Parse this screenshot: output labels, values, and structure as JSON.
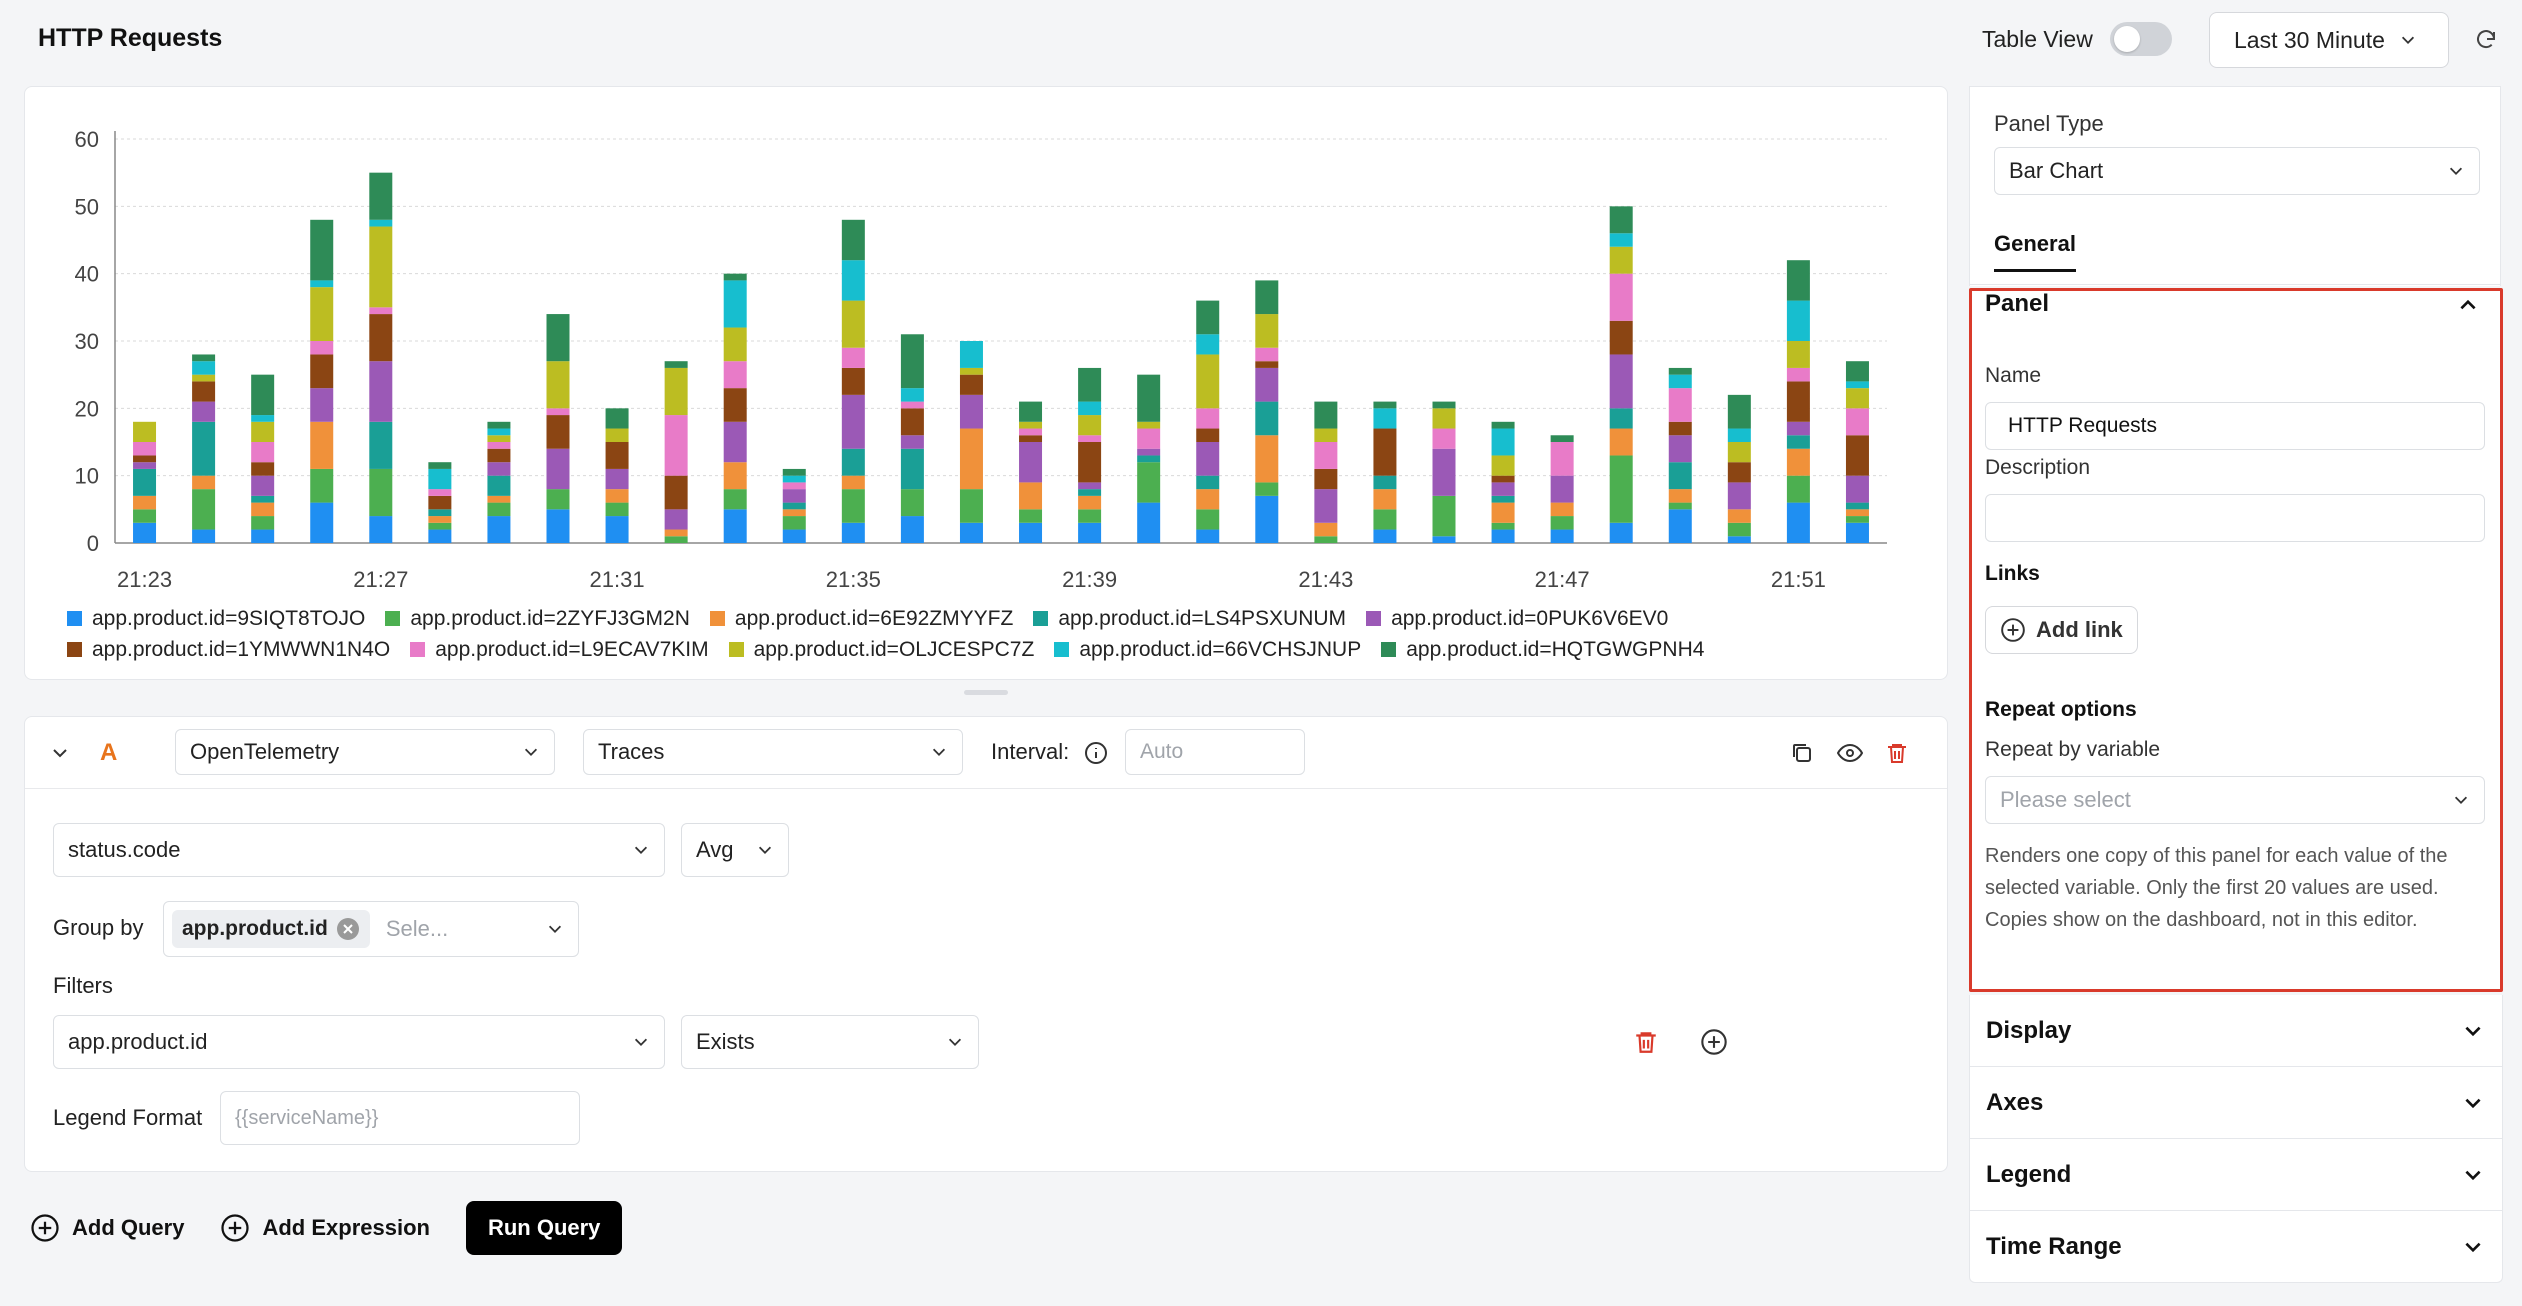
{
  "header": {
    "title": "HTTP Requests",
    "table_view_label": "Table View",
    "table_view_on": false,
    "time_range": "Last 30 Minute"
  },
  "chart_data": {
    "type": "bar",
    "stacked": true,
    "ylim": [
      0,
      60
    ],
    "yticks": [
      0,
      10,
      20,
      30,
      40,
      50,
      60
    ],
    "xtick_labels": [
      "21:23",
      "21:27",
      "21:31",
      "21:35",
      "21:39",
      "21:43",
      "21:47",
      "21:51"
    ],
    "xtick_bar_index": [
      0,
      4,
      8,
      12,
      16,
      20,
      24,
      28
    ],
    "grid": true,
    "legend_position": "bottom",
    "series": [
      {
        "name": "app.product.id=9SIQT8TOJO",
        "color": "#1f8ff2",
        "values": [
          3,
          2,
          2,
          6,
          4,
          2,
          4,
          5,
          4,
          0,
          5,
          2,
          3,
          4,
          3,
          3,
          3,
          6,
          2,
          7,
          0,
          2,
          1,
          2,
          2,
          3,
          5,
          1,
          6,
          3
        ]
      },
      {
        "name": "app.product.id=2ZYFJ3GM2N",
        "color": "#4caf50",
        "values": [
          2,
          6,
          2,
          5,
          7,
          1,
          2,
          3,
          2,
          1,
          3,
          2,
          5,
          4,
          5,
          2,
          2,
          6,
          3,
          2,
          1,
          3,
          6,
          1,
          2,
          10,
          1,
          2,
          4,
          1
        ]
      },
      {
        "name": "app.product.id=6E92ZMYYFZ",
        "color": "#f0913a",
        "values": [
          2,
          2,
          2,
          7,
          0,
          1,
          1,
          0,
          2,
          1,
          4,
          1,
          2,
          0,
          9,
          4,
          2,
          0,
          3,
          7,
          2,
          3,
          0,
          3,
          2,
          4,
          2,
          2,
          4,
          1
        ]
      },
      {
        "name": "app.product.id=LS4PSXUNUM",
        "color": "#1a9f96",
        "values": [
          4,
          8,
          1,
          0,
          7,
          1,
          3,
          0,
          0,
          0,
          0,
          1,
          4,
          6,
          0,
          0,
          1,
          1,
          2,
          5,
          0,
          2,
          0,
          1,
          0,
          3,
          4,
          0,
          2,
          1
        ]
      },
      {
        "name": "app.product.id=0PUK6V6EV0",
        "color": "#9b59b6",
        "values": [
          1,
          3,
          3,
          5,
          9,
          0,
          2,
          6,
          3,
          3,
          6,
          2,
          8,
          2,
          5,
          6,
          1,
          1,
          5,
          5,
          5,
          0,
          7,
          2,
          4,
          8,
          4,
          4,
          2,
          4
        ]
      },
      {
        "name": "app.product.id=1YMWWN1N4O",
        "color": "#8b4513",
        "values": [
          1,
          3,
          2,
          5,
          7,
          2,
          2,
          5,
          4,
          5,
          5,
          0,
          4,
          4,
          3,
          1,
          6,
          0,
          2,
          1,
          3,
          7,
          0,
          1,
          0,
          5,
          2,
          3,
          6,
          6
        ]
      },
      {
        "name": "app.product.id=L9ECAV7KIM",
        "color": "#e87bc8",
        "values": [
          2,
          0,
          3,
          2,
          1,
          1,
          1,
          1,
          0,
          9,
          4,
          1,
          3,
          1,
          0,
          1,
          1,
          3,
          3,
          2,
          4,
          0,
          3,
          0,
          5,
          7,
          5,
          0,
          2,
          4
        ]
      },
      {
        "name": "app.product.id=OLJCESPC7Z",
        "color": "#bcbd22",
        "values": [
          3,
          1,
          3,
          8,
          12,
          0,
          1,
          7,
          2,
          7,
          5,
          0,
          7,
          0,
          1,
          1,
          3,
          1,
          8,
          5,
          2,
          0,
          3,
          3,
          0,
          4,
          0,
          3,
          4,
          3
        ]
      },
      {
        "name": "app.product.id=66VCHSJNUP",
        "color": "#17becf",
        "values": [
          0,
          2,
          1,
          1,
          1,
          3,
          1,
          0,
          0,
          0,
          7,
          1,
          6,
          2,
          4,
          0,
          2,
          0,
          3,
          0,
          0,
          3,
          0,
          4,
          0,
          2,
          2,
          2,
          6,
          1
        ]
      },
      {
        "name": "app.product.id=HQTGWGPNH4",
        "color": "#2e8b57",
        "values": [
          0,
          1,
          6,
          9,
          7,
          1,
          1,
          7,
          3,
          1,
          1,
          1,
          6,
          8,
          0,
          3,
          5,
          7,
          5,
          5,
          4,
          1,
          1,
          1,
          1,
          4,
          1,
          5,
          6,
          3
        ]
      }
    ]
  },
  "query": {
    "letter": "A",
    "datasource": "OpenTelemetry",
    "signal": "Traces",
    "interval_label": "Interval:",
    "interval_placeholder": "Auto",
    "metric": "status.code",
    "aggregation": "Avg",
    "group_by_label": "Group by",
    "group_by_chip": "app.product.id",
    "group_by_placeholder": "Sele...",
    "filters_label": "Filters",
    "filter_key": "app.product.id",
    "filter_op": "Exists",
    "legend_format_label": "Legend Format",
    "legend_format_placeholder": "{{serviceName}}"
  },
  "actions": {
    "add_query": "Add Query",
    "add_expression": "Add Expression",
    "run_query": "Run Query"
  },
  "settings": {
    "panel_type_label": "Panel Type",
    "panel_type": "Bar Chart",
    "tab_general": "General",
    "panel_section": "Panel",
    "name_label": "Name",
    "name_value": "HTTP Requests",
    "description_label": "Description",
    "description_value": "",
    "links_label": "Links",
    "add_link": "Add link",
    "repeat_title": "Repeat options",
    "repeat_by_label": "Repeat by variable",
    "repeat_placeholder": "Please select",
    "repeat_help": "Renders one copy of this panel for each value of the selected variable. Only the first 20 values are used. Copies show on the dashboard, not in this editor.",
    "display": "Display",
    "axes": "Axes",
    "legend": "Legend",
    "time_range": "Time Range"
  },
  "icons": {
    "chevron": "chevron-down-icon",
    "refresh": "refresh-icon",
    "copy": "copy-icon",
    "eye": "eye-icon",
    "trash": "trash-icon",
    "plus_circle": "plus-circle-icon",
    "info": "info-icon"
  },
  "colors": {
    "accent_orange": "#e8741c",
    "danger": "#d93a2b",
    "highlight_border": "#d93a2b"
  }
}
